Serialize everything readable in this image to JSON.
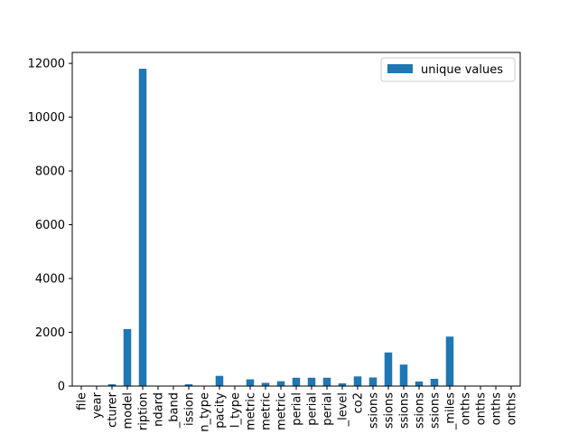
{
  "chart_data": {
    "type": "bar",
    "categories": [
      "file",
      "year",
      "cturer",
      "model",
      "ription",
      "ndard",
      "_band",
      "ission",
      "n_type",
      "pacity",
      "l_type",
      "metric",
      "metric",
      "metric",
      "perial",
      "perial",
      "perial",
      "_level",
      "co2",
      "ssions",
      "ssions",
      "ssions",
      "ssions",
      "ssions",
      "_miles",
      "onths",
      "onths",
      "onths",
      "onths"
    ],
    "series": [
      {
        "name": "unique values",
        "color": "#1f77b4",
        "values": [
          2,
          10,
          70,
          2120,
          11800,
          6,
          6,
          70,
          6,
          380,
          6,
          250,
          120,
          180,
          310,
          310,
          310,
          100,
          360,
          320,
          1250,
          800,
          170,
          270,
          1840,
          4,
          4,
          4,
          4
        ]
      }
    ],
    "yticks": [
      0,
      2000,
      4000,
      6000,
      8000,
      10000,
      12000
    ],
    "ylim": [
      0,
      12407
    ],
    "legend_position": "upper-right",
    "grid": false
  }
}
